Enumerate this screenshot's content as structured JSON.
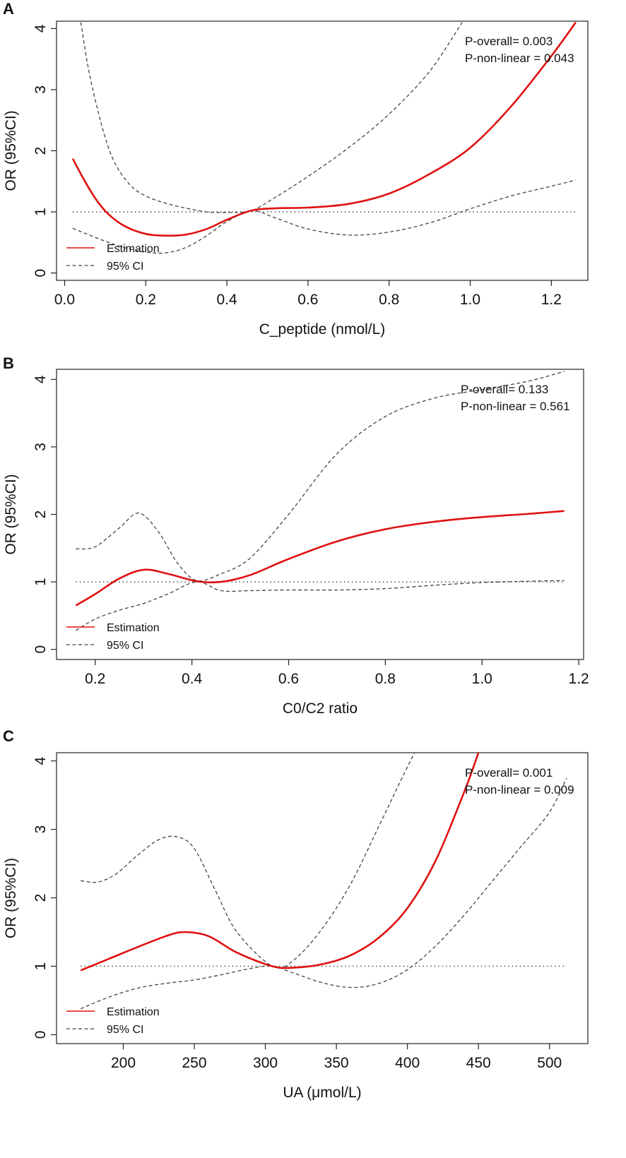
{
  "colors": {
    "estimate": "#e01010",
    "ci": "#444444",
    "ref": "#555555",
    "frame": "#222222"
  },
  "legend": {
    "estimate_label": "Estimation",
    "ci_label": "95% CI",
    "placement": "bottom-left"
  },
  "chart_data": [
    {
      "panel": "A",
      "type": "line",
      "title": "",
      "xlabel": "C_peptide (nmol/L)",
      "ylabel": "OR (95%CI)",
      "xlim": [
        -0.02,
        1.29
      ],
      "ylim": [
        -0.12,
        4.12
      ],
      "xticks": [
        0.0,
        0.2,
        0.4,
        0.6,
        0.8,
        1.0,
        1.2
      ],
      "xtick_labels": [
        "0.0",
        "0.2",
        "0.4",
        "0.6",
        "0.8",
        "1.0",
        "1.2"
      ],
      "yticks": [
        0,
        1,
        2,
        3,
        4
      ],
      "ytick_labels": [
        "0",
        "1",
        "2",
        "3",
        "4"
      ],
      "reference_line": 1,
      "annotations": [
        "P-overall= 0.003",
        "P-non-linear = 0.043"
      ],
      "series": [
        {
          "name": "Estimation",
          "style": "solid",
          "x": [
            0.02,
            0.05,
            0.08,
            0.11,
            0.15,
            0.2,
            0.25,
            0.3,
            0.35,
            0.4,
            0.46,
            0.52,
            0.6,
            0.7,
            0.8,
            0.9,
            1.0,
            1.1,
            1.2,
            1.26
          ],
          "y": [
            1.87,
            1.5,
            1.18,
            0.95,
            0.76,
            0.64,
            0.61,
            0.63,
            0.72,
            0.87,
            1.02,
            1.06,
            1.07,
            1.13,
            1.3,
            1.62,
            2.05,
            2.72,
            3.55,
            4.1
          ]
        },
        {
          "name": "95% CI upper",
          "style": "dashed",
          "x": [
            0.04,
            0.06,
            0.09,
            0.12,
            0.16,
            0.2,
            0.25,
            0.3,
            0.35,
            0.4,
            0.46,
            0.52,
            0.6,
            0.7,
            0.8,
            0.9,
            0.98
          ],
          "y": [
            4.1,
            3.3,
            2.45,
            1.85,
            1.45,
            1.26,
            1.14,
            1.06,
            1.0,
            0.99,
            1.02,
            1.24,
            1.58,
            2.05,
            2.6,
            3.3,
            4.1
          ]
        },
        {
          "name": "95% CI lower",
          "style": "dashed",
          "x": [
            0.02,
            0.05,
            0.1,
            0.15,
            0.2,
            0.25,
            0.3,
            0.35,
            0.4,
            0.46,
            0.52,
            0.6,
            0.7,
            0.8,
            0.9,
            1.0,
            1.1,
            1.2,
            1.26
          ],
          "y": [
            0.73,
            0.65,
            0.52,
            0.41,
            0.34,
            0.33,
            0.42,
            0.61,
            0.84,
            1.02,
            0.9,
            0.72,
            0.62,
            0.67,
            0.82,
            1.05,
            1.26,
            1.42,
            1.52
          ]
        }
      ]
    },
    {
      "panel": "B",
      "type": "line",
      "title": "",
      "xlabel": "C0/C2 ratio",
      "ylabel": "OR (95%CI)",
      "xlim": [
        0.12,
        1.21
      ],
      "ylim": [
        -0.15,
        4.15
      ],
      "xticks": [
        0.2,
        0.4,
        0.6,
        0.8,
        1.0,
        1.2
      ],
      "xtick_labels": [
        "0.2",
        "0.4",
        "0.6",
        "0.8",
        "1.0",
        "1.2"
      ],
      "yticks": [
        0,
        1,
        2,
        3,
        4
      ],
      "ytick_labels": [
        "0",
        "1",
        "2",
        "3",
        "4"
      ],
      "reference_line": 1,
      "annotations": [
        "P-overall= 0.133",
        "P-non-linear = 0.561"
      ],
      "series": [
        {
          "name": "Estimation",
          "style": "solid",
          "x": [
            0.16,
            0.2,
            0.25,
            0.3,
            0.35,
            0.41,
            0.46,
            0.52,
            0.6,
            0.7,
            0.8,
            0.9,
            1.0,
            1.1,
            1.17
          ],
          "y": [
            0.65,
            0.82,
            1.05,
            1.18,
            1.12,
            1.01,
            1.0,
            1.1,
            1.34,
            1.6,
            1.78,
            1.89,
            1.96,
            2.01,
            2.05
          ]
        },
        {
          "name": "95% CI upper",
          "style": "dashed",
          "x": [
            0.16,
            0.2,
            0.25,
            0.29,
            0.33,
            0.37,
            0.41,
            0.46,
            0.52,
            0.6,
            0.7,
            0.8,
            0.9,
            1.0,
            1.1,
            1.17
          ],
          "y": [
            1.49,
            1.52,
            1.8,
            2.02,
            1.75,
            1.28,
            1.02,
            1.12,
            1.35,
            2.0,
            2.9,
            3.45,
            3.72,
            3.85,
            3.98,
            4.12
          ]
        },
        {
          "name": "95% CI lower",
          "style": "dashed",
          "x": [
            0.16,
            0.2,
            0.25,
            0.3,
            0.35,
            0.41,
            0.46,
            0.52,
            0.6,
            0.7,
            0.8,
            0.9,
            1.0,
            1.1,
            1.17
          ],
          "y": [
            0.28,
            0.45,
            0.58,
            0.68,
            0.82,
            1.0,
            0.87,
            0.87,
            0.88,
            0.88,
            0.9,
            0.95,
            0.99,
            1.01,
            1.02
          ]
        }
      ]
    },
    {
      "panel": "C",
      "type": "line",
      "title": "",
      "xlabel": "UA (μmol/L)",
      "ylabel": "OR (95%CI)",
      "xlim": [
        153,
        527
      ],
      "ylim": [
        -0.13,
        4.12
      ],
      "xticks": [
        200,
        250,
        300,
        350,
        400,
        450,
        500
      ],
      "xtick_labels": [
        "200",
        "250",
        "300",
        "350",
        "400",
        "450",
        "500"
      ],
      "yticks": [
        0,
        1,
        2,
        3,
        4
      ],
      "ytick_labels": [
        "0",
        "1",
        "2",
        "3",
        "4"
      ],
      "reference_line": 1,
      "annotations": [
        "P-overall= 0.001",
        "P-non-linear = 0.009"
      ],
      "series": [
        {
          "name": "Estimation",
          "style": "solid",
          "x": [
            170,
            190,
            210,
            230,
            243,
            260,
            280,
            305,
            320,
            340,
            360,
            380,
            400,
            420,
            440,
            450
          ],
          "y": [
            0.94,
            1.11,
            1.28,
            1.44,
            1.5,
            1.44,
            1.2,
            1.0,
            0.98,
            1.03,
            1.16,
            1.42,
            1.85,
            2.55,
            3.55,
            4.12
          ]
        },
        {
          "name": "95% CI upper",
          "style": "dashed",
          "x": [
            170,
            182,
            195,
            210,
            225,
            238,
            250,
            265,
            280,
            305,
            320,
            340,
            360,
            380,
            395,
            405
          ],
          "y": [
            2.25,
            2.23,
            2.35,
            2.62,
            2.85,
            2.89,
            2.72,
            2.1,
            1.5,
            1.0,
            1.09,
            1.55,
            2.2,
            3.05,
            3.7,
            4.12
          ]
        },
        {
          "name": "95% CI lower",
          "style": "dashed",
          "x": [
            170,
            190,
            210,
            230,
            250,
            270,
            290,
            305,
            320,
            340,
            360,
            380,
            400,
            420,
            440,
            460,
            480,
            500,
            512
          ],
          "y": [
            0.38,
            0.55,
            0.68,
            0.75,
            0.8,
            0.88,
            0.97,
            1.0,
            0.9,
            0.76,
            0.69,
            0.75,
            0.95,
            1.3,
            1.75,
            2.25,
            2.75,
            3.25,
            3.75
          ]
        }
      ]
    }
  ]
}
